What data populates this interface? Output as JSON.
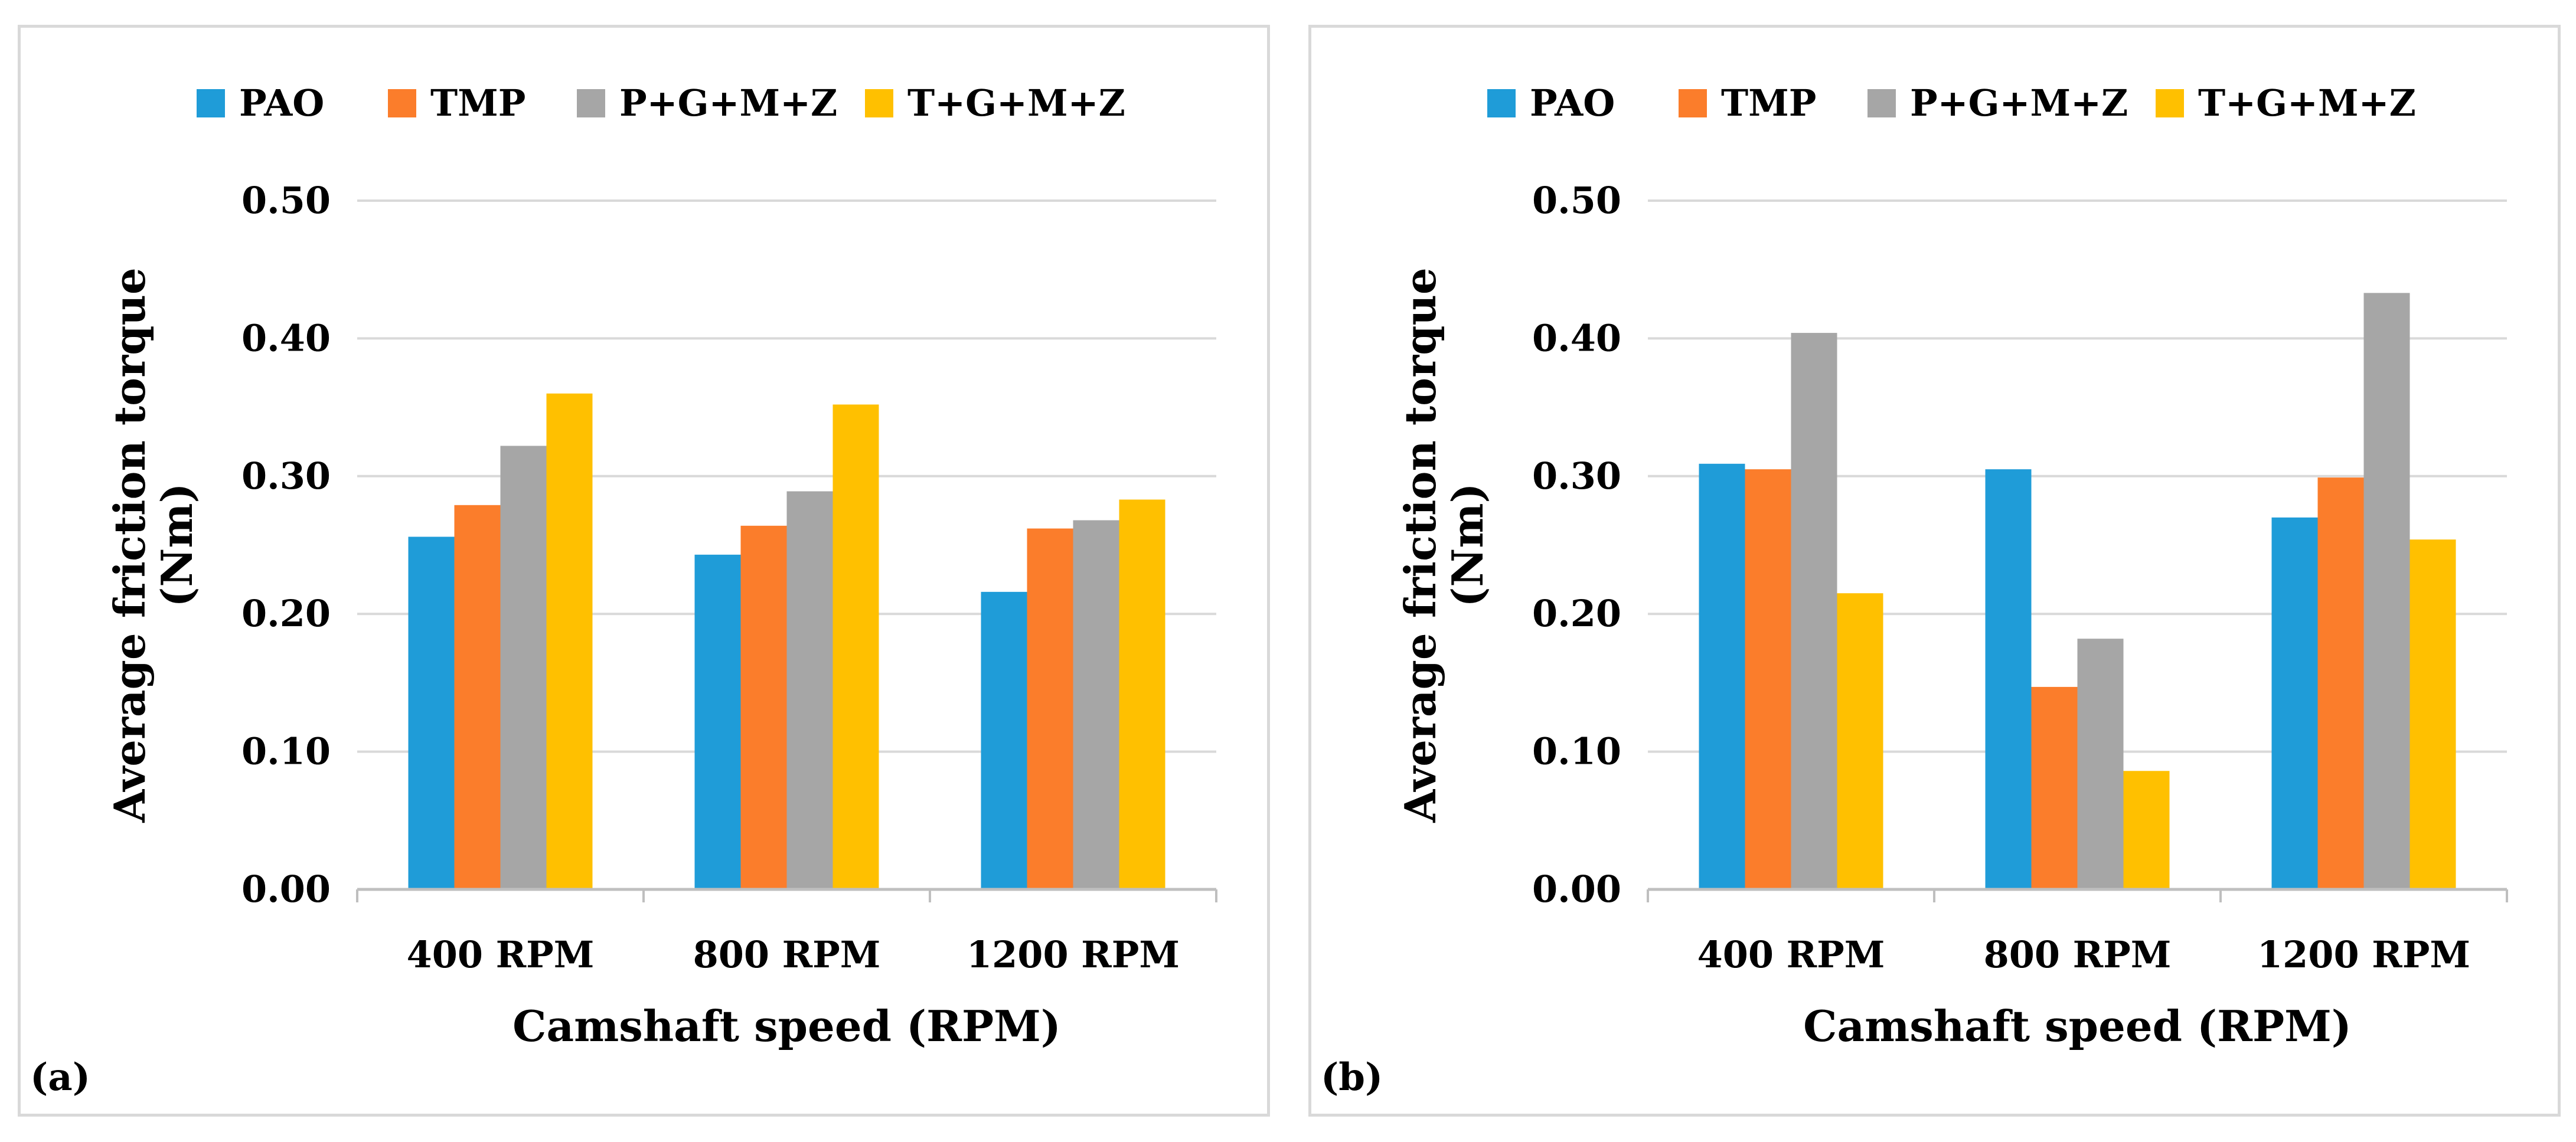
{
  "chart_data": [
    {
      "panel_label": "(a)",
      "type": "bar",
      "xlabel": "Camshaft speed (RPM)",
      "ylabel": [
        "Average friction torque",
        "(Nm)"
      ],
      "ylim": [
        0,
        0.5
      ],
      "yticks": [
        "0.00",
        "0.10",
        "0.20",
        "0.30",
        "0.40",
        "0.50"
      ],
      "grid": true,
      "legend_position": "top",
      "categories": [
        "400 RPM",
        "800 RPM",
        "1200 RPM"
      ],
      "series": [
        {
          "name": "PAO",
          "color": "#1f9cd8",
          "values": [
            0.256,
            0.243,
            0.216
          ]
        },
        {
          "name": "TMP",
          "color": "#fb7d2b",
          "values": [
            0.279,
            0.264,
            0.262
          ]
        },
        {
          "name": "P+G+M+Z",
          "color": "#a6a6a6",
          "values": [
            0.322,
            0.289,
            0.268
          ]
        },
        {
          "name": "T+G+M+Z",
          "color": "#ffc000",
          "values": [
            0.36,
            0.352,
            0.283
          ]
        }
      ]
    },
    {
      "panel_label": "(b)",
      "type": "bar",
      "xlabel": "Camshaft speed (RPM)",
      "ylabel": [
        "Average friction torque",
        "(Nm)"
      ],
      "ylim": [
        0,
        0.5
      ],
      "yticks": [
        "0.00",
        "0.10",
        "0.20",
        "0.30",
        "0.40",
        "0.50"
      ],
      "grid": true,
      "legend_position": "top",
      "categories": [
        "400 RPM",
        "800 RPM",
        "1200 RPM"
      ],
      "series": [
        {
          "name": "PAO",
          "color": "#1f9cd8",
          "values": [
            0.309,
            0.305,
            0.27
          ]
        },
        {
          "name": "TMP",
          "color": "#fb7d2b",
          "values": [
            0.305,
            0.147,
            0.299
          ]
        },
        {
          "name": "P+G+M+Z",
          "color": "#a6a6a6",
          "values": [
            0.404,
            0.182,
            0.433
          ]
        },
        {
          "name": "T+G+M+Z",
          "color": "#ffc000",
          "values": [
            0.215,
            0.086,
            0.254
          ]
        }
      ]
    }
  ]
}
